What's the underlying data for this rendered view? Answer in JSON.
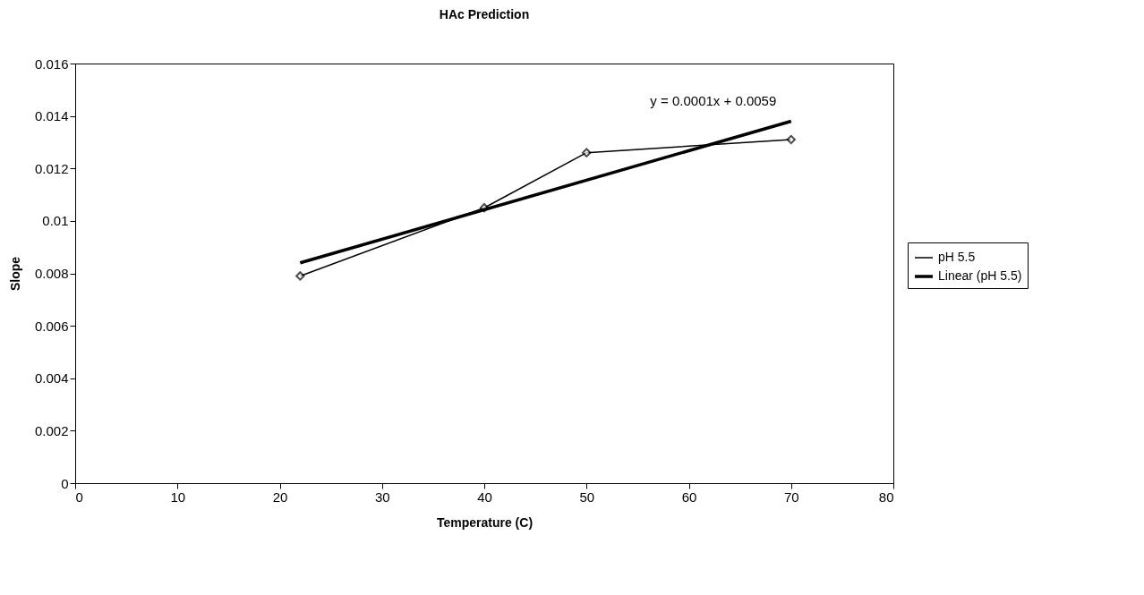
{
  "chart_data": {
    "type": "line",
    "title": "HAc Prediction",
    "xlabel": "Temperature (C)",
    "ylabel": "Slope",
    "xlim": [
      0,
      80
    ],
    "xticks": [
      0,
      10,
      20,
      30,
      40,
      50,
      60,
      70,
      80
    ],
    "ylim": [
      0,
      0.016
    ],
    "yticks": [
      0,
      0.002,
      0.004,
      0.006,
      0.008,
      0.01,
      0.012,
      0.014,
      0.016
    ],
    "grid": false,
    "legend": "right",
    "marker": "diamond",
    "series": [
      {
        "name": "pH 5.5",
        "color": "#000000",
        "x": [
          22,
          40,
          50,
          70
        ],
        "values": [
          0.0079,
          0.0105,
          0.0126,
          0.0131
        ]
      },
      {
        "name": "Linear (pH 5.5)",
        "color": "#000000",
        "type": "line",
        "marker": "none",
        "x": [
          22,
          70
        ],
        "values": [
          0.0084,
          0.0138
        ]
      }
    ],
    "annotations": [
      "y = 0.0001x + 0.0059"
    ]
  }
}
